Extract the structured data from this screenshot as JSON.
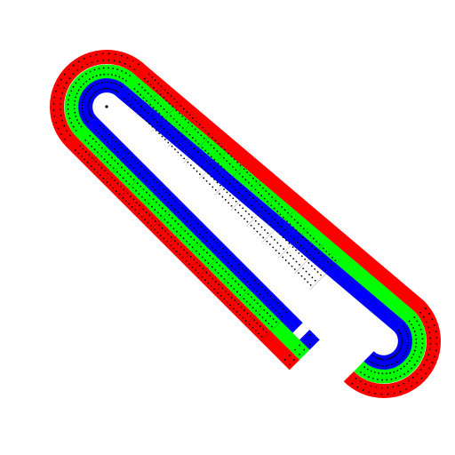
{
  "board": {
    "name": "cribbage-board",
    "background": "#ffffff",
    "hole_color": "#000000",
    "divider_color": "#000000",
    "holes_per_street": 60,
    "holes_per_group": 5
  },
  "tracks": [
    {
      "id": "outer",
      "color": "#ff0000"
    },
    {
      "id": "middle",
      "color": "#00ff00"
    },
    {
      "id": "inner",
      "color": "#0000ff"
    }
  ],
  "finish": {
    "hole_count": 1
  }
}
